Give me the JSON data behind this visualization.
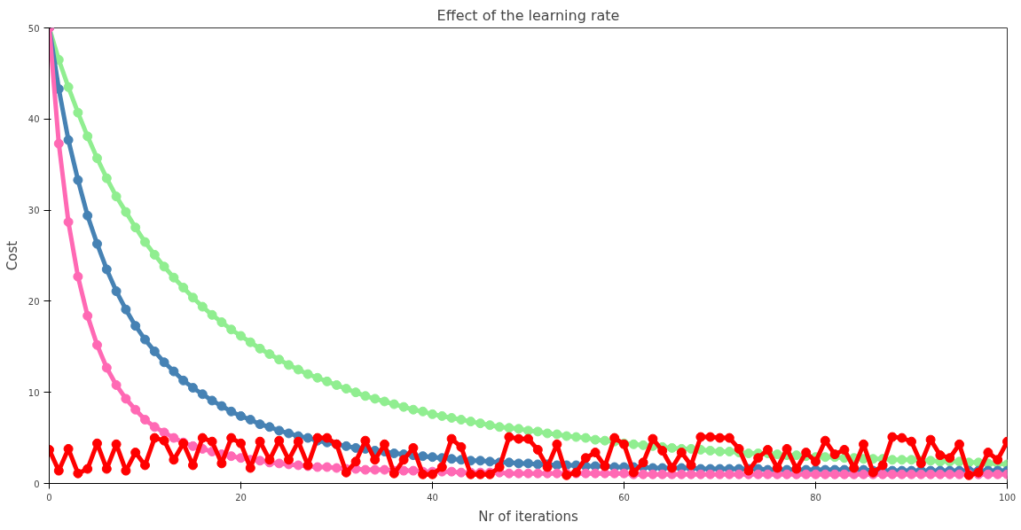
{
  "chart_data": {
    "type": "line",
    "title": "Effect of the learning rate",
    "xlabel": "Nr of iterations",
    "ylabel": "Cost",
    "x": [
      0,
      1,
      2,
      3,
      4,
      5,
      6,
      7,
      8,
      9,
      10,
      11,
      12,
      13,
      14,
      15,
      16,
      17,
      18,
      19,
      20,
      21,
      22,
      23,
      24,
      25,
      26,
      27,
      28,
      29,
      30,
      31,
      32,
      33,
      34,
      35,
      36,
      37,
      38,
      39,
      40,
      41,
      42,
      43,
      44,
      45,
      46,
      47,
      48,
      49,
      50,
      51,
      52,
      53,
      54,
      55,
      56,
      57,
      58,
      59,
      60,
      61,
      62,
      63,
      64,
      65,
      66,
      67,
      68,
      69,
      70,
      71,
      72,
      73,
      74,
      75,
      76,
      77,
      78,
      79,
      80,
      81,
      82,
      83,
      84,
      85,
      86,
      87,
      88,
      89,
      90,
      91,
      92,
      93,
      94,
      95,
      96,
      97,
      98,
      99,
      100
    ],
    "xlim": [
      0,
      100
    ],
    "xticks": [
      0,
      20,
      40,
      60,
      80,
      100
    ],
    "ylim": [
      0,
      50
    ],
    "yticks": [
      0,
      10,
      20,
      30,
      40,
      50
    ],
    "grid": false,
    "marker": "circle",
    "line_style": "solid",
    "series": [
      {
        "color": "#90ee90",
        "values": [
          50,
          46.5,
          43.5,
          40.7,
          38.1,
          35.7,
          33.5,
          31.5,
          29.8,
          28.1,
          26.5,
          25.1,
          23.8,
          22.6,
          21.5,
          20.4,
          19.4,
          18.5,
          17.7,
          16.9,
          16.2,
          15.5,
          14.8,
          14.2,
          13.6,
          13.0,
          12.5,
          12.0,
          11.6,
          11.2,
          10.8,
          10.4,
          10.0,
          9.6,
          9.3,
          9.0,
          8.7,
          8.4,
          8.1,
          7.9,
          7.6,
          7.4,
          7.2,
          7.0,
          6.8,
          6.6,
          6.4,
          6.2,
          6.1,
          6.0,
          5.8,
          5.7,
          5.5,
          5.4,
          5.2,
          5.1,
          5.0,
          4.8,
          4.7,
          4.6,
          4.4,
          4.3,
          4.2,
          4.1,
          4.0,
          3.9,
          3.8,
          3.8,
          3.7,
          3.6,
          3.5,
          3.5,
          3.4,
          3.3,
          3.3,
          3.3,
          3.2,
          3.1,
          3.1,
          3.0,
          2.9,
          2.9,
          2.9,
          2.8,
          2.8,
          2.7,
          2.7,
          2.7,
          2.6,
          2.6,
          2.6,
          2.5,
          2.5,
          2.4,
          2.4,
          2.4,
          2.3,
          2.3,
          2.2,
          2.2,
          2.1
        ]
      },
      {
        "color": "#4682b4",
        "values": [
          50,
          43.3,
          37.7,
          33.3,
          29.4,
          26.3,
          23.5,
          21.1,
          19.1,
          17.3,
          15.8,
          14.5,
          13.3,
          12.3,
          11.3,
          10.5,
          9.8,
          9.1,
          8.5,
          7.9,
          7.4,
          7.0,
          6.5,
          6.2,
          5.8,
          5.5,
          5.2,
          5.0,
          4.7,
          4.5,
          4.3,
          4.1,
          3.9,
          3.8,
          3.6,
          3.5,
          3.3,
          3.2,
          3.1,
          3.0,
          2.9,
          2.8,
          2.7,
          2.6,
          2.5,
          2.5,
          2.4,
          2.3,
          2.3,
          2.2,
          2.2,
          2.1,
          2.1,
          2.0,
          2.0,
          2.0,
          1.9,
          1.9,
          1.9,
          1.8,
          1.8,
          1.8,
          1.8,
          1.7,
          1.7,
          1.7,
          1.7,
          1.7,
          1.6,
          1.6,
          1.6,
          1.6,
          1.6,
          1.6,
          1.6,
          1.5,
          1.5,
          1.5,
          1.5,
          1.5,
          1.5,
          1.5,
          1.5,
          1.5,
          1.5,
          1.5,
          1.4,
          1.4,
          1.4,
          1.4,
          1.4,
          1.4,
          1.4,
          1.4,
          1.4,
          1.4,
          1.4,
          1.4,
          1.4,
          1.4,
          1.4
        ]
      },
      {
        "color": "#ff69b4",
        "values": [
          50,
          37.3,
          28.7,
          22.7,
          18.4,
          15.2,
          12.7,
          10.8,
          9.3,
          8.1,
          7.0,
          6.2,
          5.6,
          5.0,
          4.5,
          4.1,
          3.8,
          3.5,
          3.2,
          3.0,
          2.8,
          2.6,
          2.5,
          2.3,
          2.2,
          2.1,
          2.0,
          1.9,
          1.8,
          1.8,
          1.7,
          1.6,
          1.6,
          1.5,
          1.5,
          1.5,
          1.4,
          1.4,
          1.4,
          1.3,
          1.3,
          1.3,
          1.3,
          1.2,
          1.2,
          1.2,
          1.2,
          1.2,
          1.1,
          1.1,
          1.1,
          1.1,
          1.1,
          1.1,
          1.1,
          1.1,
          1.1,
          1.1,
          1.1,
          1.1,
          1.1,
          1.0,
          1.0,
          1.0,
          1.0,
          1.0,
          1.0,
          1.0,
          1.0,
          1.0,
          1.0,
          1.0,
          1.0,
          1.0,
          1.0,
          1.0,
          1.0,
          1.0,
          1.0,
          1.0,
          1.0,
          1.0,
          1.0,
          1.0,
          1.0,
          1.0,
          1.0,
          1.0,
          1.0,
          1.0,
          1.0,
          1.0,
          1.0,
          1.0,
          1.0,
          1.0,
          1.0,
          1.0,
          1.0,
          1.0,
          1.0
        ]
      },
      {
        "color": "#ff0000",
        "values": [
          3.7,
          1.4,
          3.8,
          1.1,
          1.6,
          4.4,
          1.6,
          4.3,
          1.4,
          3.4,
          2.0,
          5.0,
          4.7,
          2.6,
          4.4,
          2.0,
          5.0,
          4.6,
          2.2,
          5.0,
          4.4,
          1.7,
          4.6,
          2.6,
          4.7,
          2.6,
          4.6,
          2.0,
          5.0,
          5.0,
          4.3,
          1.2,
          2.4,
          4.7,
          2.6,
          4.3,
          1.1,
          2.6,
          3.9,
          1.0,
          1.0,
          1.8,
          4.9,
          4.0,
          1.0,
          1.0,
          1.0,
          1.8,
          5.1,
          4.9,
          4.9,
          3.7,
          1.8,
          4.3,
          0.9,
          1.2,
          2.8,
          3.4,
          1.9,
          5.0,
          4.3,
          1.2,
          2.3,
          4.9,
          3.6,
          1.7,
          3.4,
          2.0,
          5.1,
          5.1,
          5.0,
          5.0,
          3.8,
          1.4,
          2.8,
          3.7,
          1.7,
          3.8,
          1.6,
          3.4,
          2.4,
          4.7,
          3.2,
          3.7,
          1.7,
          4.3,
          1.2,
          2.0,
          5.1,
          5.0,
          4.6,
          2.2,
          4.8,
          3.1,
          2.8,
          4.3,
          0.9,
          1.2,
          3.4,
          2.6,
          4.6
        ]
      }
    ]
  }
}
